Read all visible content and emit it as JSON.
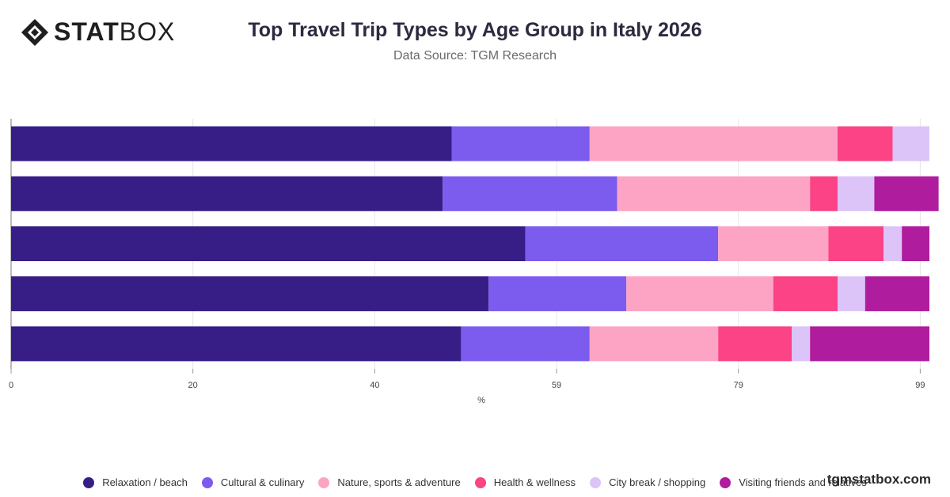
{
  "logo": {
    "bold_text": "STAT",
    "light_text": "BOX"
  },
  "watermark": "tgmstatbox.com",
  "chart_data": {
    "type": "bar",
    "orientation": "horizontal",
    "stacked": true,
    "title": "Top Travel Trip Types by Age Group in Italy 2026",
    "subtitle": "Data Source: TGM Research",
    "xlabel": "%",
    "ylabel": "",
    "xlim": [
      0,
      100
    ],
    "x_ticks": [
      "0",
      "20",
      "40",
      "59",
      "79",
      "99"
    ],
    "x_tick_values": [
      0,
      19.8,
      39.6,
      59.4,
      79.2,
      99
    ],
    "grid": true,
    "legend_position": "bottom",
    "categories": [
      "",
      "",
      "",
      "",
      ""
    ],
    "series": [
      {
        "name": "Relaxation / beach",
        "color": "#371e87",
        "values": [
          48,
          47,
          56,
          52,
          49
        ]
      },
      {
        "name": "Cultural & culinary",
        "color": "#7b5cef",
        "values": [
          15,
          19,
          21,
          15,
          14
        ]
      },
      {
        "name": "Nature, sports & adventure",
        "color": "#fda4c4",
        "values": [
          27,
          21,
          12,
          16,
          14
        ]
      },
      {
        "name": "Health & wellness",
        "color": "#fb4386",
        "values": [
          6,
          3,
          6,
          7,
          8
        ]
      },
      {
        "name": "City break / shopping",
        "color": "#dcc4f9",
        "values": [
          4,
          4,
          2,
          3,
          2
        ]
      },
      {
        "name": "Visiting friends and relatives",
        "color": "#b01c9e",
        "values": [
          0,
          7,
          3,
          7,
          13
        ]
      }
    ]
  }
}
